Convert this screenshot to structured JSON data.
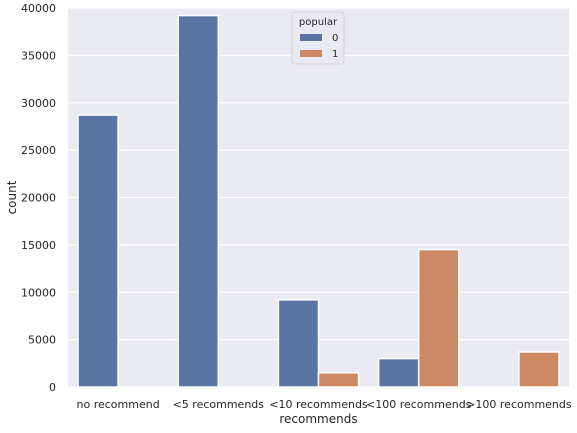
{
  "chart_data": {
    "type": "bar",
    "title": "",
    "xlabel": "recommends",
    "ylabel": "count",
    "categories": [
      "no recommend",
      "<5 recommends",
      "<10 recommends",
      "<100 recommends",
      ">100 recommends"
    ],
    "series": [
      {
        "name": "0",
        "color": "#5975a4",
        "values": [
          28700,
          39200,
          9200,
          3000,
          0
        ]
      },
      {
        "name": "1",
        "color": "#cc8963",
        "values": [
          0,
          0,
          1500,
          14500,
          3700
        ]
      }
    ],
    "ylim": [
      0,
      40000
    ],
    "yticks": [
      0,
      5000,
      10000,
      15000,
      20000,
      25000,
      30000,
      35000,
      40000
    ],
    "grid": true,
    "legend": {
      "title": "popular",
      "placement": "top-center"
    },
    "colors": {
      "background": "#eaeaf2",
      "grid": "#ffffff",
      "text": "#262626"
    }
  }
}
